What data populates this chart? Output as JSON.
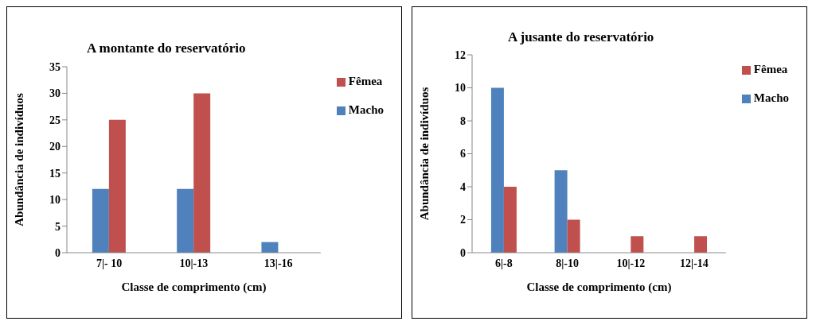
{
  "chart_data": [
    {
      "type": "bar",
      "title": "A montante do reservatório",
      "xlabel": "Classe de comprimento (cm)",
      "ylabel": "Abundância de indivíduos",
      "categories": [
        "7|- 10",
        "10|-13",
        "13|-16"
      ],
      "series": [
        {
          "name": "Macho",
          "color": "#4f81bd",
          "values": [
            12,
            12,
            2
          ]
        },
        {
          "name": "Fêmea",
          "color": "#c0504d",
          "values": [
            25,
            30,
            0
          ]
        }
      ],
      "ylim": [
        0,
        35
      ],
      "yticks": [
        0,
        5,
        10,
        15,
        20,
        25,
        30,
        35
      ],
      "legend": "right"
    },
    {
      "type": "bar",
      "title": "A jusante do reservatório",
      "xlabel": "Classe de comprimento (cm)",
      "ylabel": "Abundância de indivíduos",
      "categories": [
        "6|-8",
        "8|-10",
        "10|-12",
        "12|-14"
      ],
      "series": [
        {
          "name": "Macho",
          "color": "#4f81bd",
          "values": [
            10,
            5,
            0,
            0
          ]
        },
        {
          "name": "Fêmea",
          "color": "#c0504d",
          "values": [
            4,
            2,
            1,
            1
          ]
        }
      ],
      "ylim": [
        0,
        12
      ],
      "yticks": [
        0,
        2,
        4,
        6,
        8,
        10,
        12
      ],
      "legend": "right"
    }
  ]
}
